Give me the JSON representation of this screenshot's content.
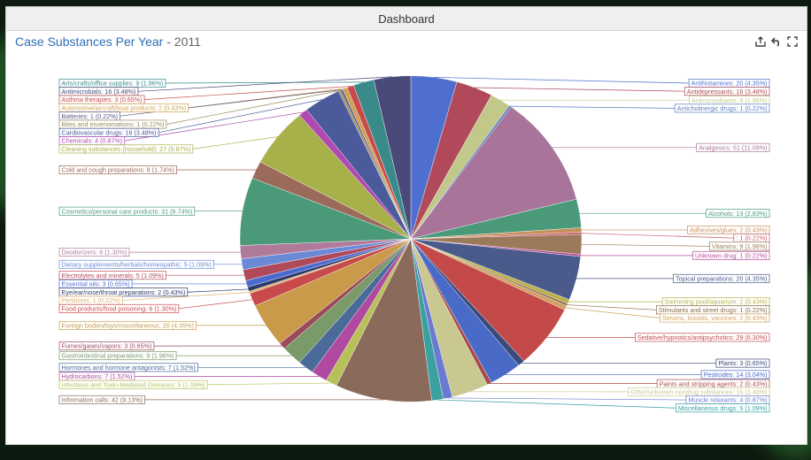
{
  "header": {
    "title": "Dashboard"
  },
  "chart_title": {
    "main": "Case Substances Per Year",
    "sep": " - ",
    "year": "2011"
  },
  "tools": {
    "export_icon": "export-icon",
    "undo_icon": "undo-icon",
    "fullscreen_icon": "fullscreen-icon"
  },
  "chart_data": {
    "type": "pie",
    "title": "Case Substances Per Year - 2011",
    "slices": [
      {
        "name": "Antihistamines",
        "value": 20,
        "pct": "4.35%",
        "color": "#4f6fd0"
      },
      {
        "name": "Antidepressants",
        "value": 16,
        "pct": "3.48%",
        "color": "#b04a5a"
      },
      {
        "name": "Anticonvulsants",
        "value": 9,
        "pct": "1.96%",
        "color": "#c2c88a"
      },
      {
        "name": "Anticholinergic drugs",
        "value": 1,
        "pct": "0.22%",
        "color": "#5b7fc4"
      },
      {
        "name": "Analgesics",
        "value": 51,
        "pct": "11.09%",
        "color": "#a8749a"
      },
      {
        "name": "Alcohols",
        "value": 13,
        "pct": "2.83%",
        "color": "#4a9a7a"
      },
      {
        "name": "Adhesives/glues",
        "value": 2,
        "pct": "0.43%",
        "color": "#c58f5a"
      },
      {
        "name": "",
        "value": 1,
        "pct": "0.22%",
        "color": "#c85a6a"
      },
      {
        "name": "Vitamins",
        "value": 9,
        "pct": "1.96%",
        "color": "#9a7a5a"
      },
      {
        "name": "Unknown drug",
        "value": 1,
        "pct": "0.22%",
        "color": "#b84a9a"
      },
      {
        "name": "Topical preparations",
        "value": 20,
        "pct": "4.35%",
        "color": "#4a5a8a"
      },
      {
        "name": "Swimming pool/aquarium",
        "value": 2,
        "pct": "0.43%",
        "color": "#b8b04a"
      },
      {
        "name": "Stimulants and street drugs",
        "value": 1,
        "pct": "0.22%",
        "color": "#8a6a4a"
      },
      {
        "name": "Serums, toxoids, vaccines",
        "value": 2,
        "pct": "0.43%",
        "color": "#d0a060"
      },
      {
        "name": "Sedative/hypnotics/antipsychotics",
        "value": 29,
        "pct": "6.30%",
        "color": "#c44a4a"
      },
      {
        "name": "Plants",
        "value": 3,
        "pct": "0.65%",
        "color": "#3a4a7a"
      },
      {
        "name": "Pesticides",
        "value": 14,
        "pct": "3.04%",
        "color": "#4a6ac8"
      },
      {
        "name": "Paints and stripping agents",
        "value": 2,
        "pct": "0.43%",
        "color": "#a84a4a"
      },
      {
        "name": "Other/unknown nondrug substances",
        "value": 16,
        "pct": "3.48%",
        "color": "#c8c890"
      },
      {
        "name": "Muscle relaxants",
        "value": 4,
        "pct": "0.87%",
        "color": "#6a7ad0"
      },
      {
        "name": "Miscellaneous drugs",
        "value": 5,
        "pct": "1.09%",
        "color": "#3aa0a0"
      },
      {
        "name": "Information calls",
        "value": 42,
        "pct": "9.13%",
        "color": "#8a6a5a"
      },
      {
        "name": "Infectious and Toxin-Mediated Diseases",
        "value": 5,
        "pct": "1.09%",
        "color": "#b8c05a"
      },
      {
        "name": "Hydrocarbons",
        "value": 7,
        "pct": "1.52%",
        "color": "#b04aa0"
      },
      {
        "name": "Hormones and hormone antagonists",
        "value": 7,
        "pct": "1.52%",
        "color": "#4a6a9a"
      },
      {
        "name": "Gastrointestinal preparations",
        "value": 9,
        "pct": "1.96%",
        "color": "#7a9a6a"
      },
      {
        "name": "Fumes/gases/vapors",
        "value": 3,
        "pct": "0.65%",
        "color": "#9a4a5a"
      },
      {
        "name": "Foreign bodies/toys/miscellaneous",
        "value": 20,
        "pct": "4.35%",
        "color": "#c89a4a"
      },
      {
        "name": "Food products/food poisoning",
        "value": 6,
        "pct": "1.30%",
        "color": "#c84a4a"
      },
      {
        "name": "Fertilizers",
        "value": 1,
        "pct": "0.22%",
        "color": "#e0b070"
      },
      {
        "name": "Eye/ear/nose/throat preparations",
        "value": 2,
        "pct": "0.43%",
        "color": "#2a3a6a"
      },
      {
        "name": "Essential oils",
        "value": 3,
        "pct": "0.65%",
        "color": "#4a6ad0"
      },
      {
        "name": "Electrolytes and minerals",
        "value": 5,
        "pct": "1.09%",
        "color": "#b04a5a"
      },
      {
        "name": "Dietary supplements/herbals/homeopathic",
        "value": 5,
        "pct": "1.09%",
        "color": "#6a8ad8"
      },
      {
        "name": "Deodorizers",
        "value": 6,
        "pct": "1.30%",
        "color": "#b07a9a"
      },
      {
        "name": "Cosmetics/personal care products",
        "value": 31,
        "pct": "6.74%",
        "color": "#4a9a7a"
      },
      {
        "name": "Cold and cough preparations",
        "value": 8,
        "pct": "1.74%",
        "color": "#9a6a5a"
      },
      {
        "name": "Cleaning substances (household)",
        "value": 27,
        "pct": "5.87%",
        "color": "#a8b04a"
      },
      {
        "name": "Chemicals",
        "value": 4,
        "pct": "0.87%",
        "color": "#b04ab0"
      },
      {
        "name": "Cardiovascular drugs",
        "value": 16,
        "pct": "3.48%",
        "color": "#4a5a9a"
      },
      {
        "name": "Bites and envenomations",
        "value": 1,
        "pct": "0.22%",
        "color": "#9a8a5a"
      },
      {
        "name": "Batteries",
        "value": 1,
        "pct": "0.22%",
        "color": "#5a5a8a"
      },
      {
        "name": "Automotive/aircraft/boat products",
        "value": 2,
        "pct": "0.43%",
        "color": "#d0a050"
      },
      {
        "name": "Asthma therapies",
        "value": 3,
        "pct": "0.65%",
        "color": "#c84a4a"
      },
      {
        "name": "Arts/crafts/office supplies",
        "value": 9,
        "pct": "1.96%",
        "color": "#3a8a8a"
      },
      {
        "name": "Antimicrobials",
        "value": 16,
        "pct": "3.48%",
        "color": "#4a4a7a"
      }
    ]
  }
}
